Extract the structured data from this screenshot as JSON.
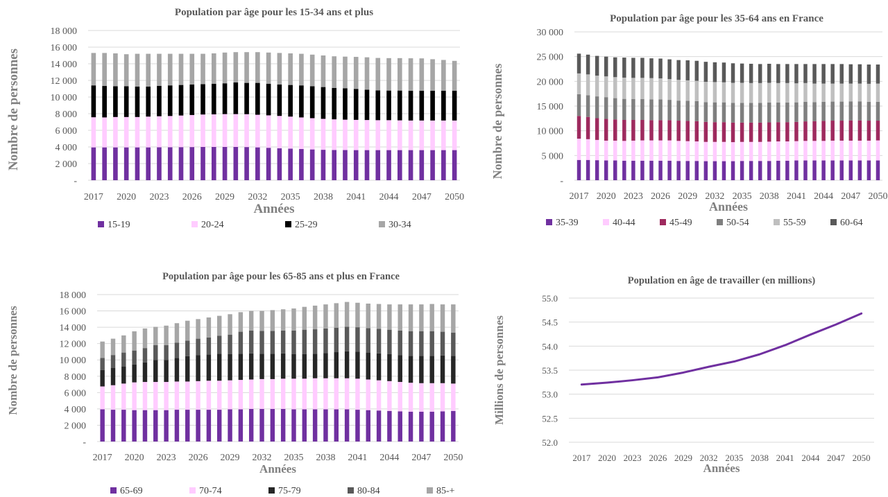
{
  "charts": [
    {
      "type": "bar",
      "stacked": true,
      "title": "Population par âge pour les 15-34 ans et plus",
      "xlabel": "Années",
      "ylabel": "Nombre de personnes",
      "ylim": [
        0,
        18000
      ],
      "ytick_labels": [
        "-",
        "2 000",
        "4 000",
        "6 000",
        "8 000",
        "10 000",
        "12 000",
        "14 000",
        "16 000",
        "18 000"
      ],
      "xtick_labels": [
        "2017",
        "2020",
        "2023",
        "2026",
        "2029",
        "2032",
        "2035",
        "2038",
        "2041",
        "2044",
        "2047",
        "2050"
      ],
      "grid": true,
      "legend_position": "bottom",
      "categories": [
        "2017",
        "2018",
        "2019",
        "2020",
        "2021",
        "2022",
        "2023",
        "2024",
        "2025",
        "2026",
        "2027",
        "2028",
        "2029",
        "2030",
        "2031",
        "2032",
        "2033",
        "2034",
        "2035",
        "2036",
        "2037",
        "2038",
        "2039",
        "2040",
        "2041",
        "2042",
        "2043",
        "2044",
        "2045",
        "2046",
        "2047",
        "2048",
        "2049",
        "2050"
      ],
      "series": [
        {
          "name": "15-19",
          "color": "#7030a0",
          "values": [
            3950,
            3950,
            3950,
            3950,
            3950,
            3950,
            3960,
            3970,
            3980,
            3990,
            4000,
            4000,
            4000,
            4000,
            3990,
            3950,
            3900,
            3850,
            3800,
            3750,
            3700,
            3660,
            3640,
            3630,
            3620,
            3620,
            3620,
            3620,
            3620,
            3620,
            3620,
            3620,
            3620,
            3620
          ]
        },
        {
          "name": "20-24",
          "color": "#ffccff",
          "values": [
            3620,
            3600,
            3650,
            3650,
            3650,
            3700,
            3730,
            3750,
            3800,
            3850,
            3900,
            3920,
            3950,
            3950,
            3950,
            3920,
            3900,
            3880,
            3850,
            3800,
            3760,
            3720,
            3680,
            3650,
            3640,
            3620,
            3600,
            3600,
            3580,
            3560,
            3560,
            3560,
            3560,
            3560
          ]
        },
        {
          "name": "25-29",
          "color": "#000000",
          "values": [
            3830,
            3780,
            3700,
            3700,
            3650,
            3600,
            3660,
            3680,
            3670,
            3660,
            3650,
            3680,
            3700,
            3800,
            3760,
            3830,
            3800,
            3770,
            3800,
            3850,
            3840,
            3820,
            3780,
            3780,
            3720,
            3640,
            3580,
            3560,
            3580,
            3580,
            3570,
            3570,
            3580,
            3570
          ]
        },
        {
          "name": "30-34",
          "color": "#a6a6a6",
          "values": [
            3900,
            3970,
            3950,
            3850,
            3950,
            3950,
            3850,
            3800,
            3750,
            3700,
            3650,
            3650,
            3700,
            3650,
            3700,
            3700,
            3750,
            3800,
            3800,
            3800,
            3800,
            3800,
            3800,
            3800,
            3850,
            3900,
            3900,
            3900,
            3900,
            3900,
            3900,
            3800,
            3700,
            3600
          ]
        }
      ]
    },
    {
      "type": "bar",
      "stacked": true,
      "title": "Population par âge pour les 35-64 ans en France",
      "xlabel": "Années",
      "ylabel": "Nombre de personnes",
      "ylim": [
        0,
        30000
      ],
      "ytick_labels": [
        "-",
        "5 000",
        "10 000",
        "15 000",
        "20 000",
        "25 000",
        "30 000"
      ],
      "xtick_labels": [
        "2017",
        "2020",
        "2023",
        "2026",
        "2029",
        "2032",
        "2035",
        "2038",
        "2041",
        "2044",
        "2047",
        "2050"
      ],
      "grid": true,
      "legend_position": "bottom",
      "categories": [
        "2017",
        "2018",
        "2019",
        "2020",
        "2021",
        "2022",
        "2023",
        "2024",
        "2025",
        "2026",
        "2027",
        "2028",
        "2029",
        "2030",
        "2031",
        "2032",
        "2033",
        "2034",
        "2035",
        "2036",
        "2037",
        "2038",
        "2039",
        "2040",
        "2041",
        "2042",
        "2043",
        "2044",
        "2045",
        "2046",
        "2047",
        "2048",
        "2049",
        "2050"
      ],
      "series": [
        {
          "name": "35-39",
          "color": "#7030a0",
          "values": [
            4100,
            4100,
            4050,
            4000,
            4000,
            3950,
            3950,
            3950,
            3950,
            3950,
            3950,
            3900,
            3900,
            3900,
            3850,
            3850,
            3850,
            3850,
            3900,
            3900,
            3900,
            3900,
            3950,
            3950,
            4000,
            4000,
            4000,
            4000,
            4000,
            4000,
            4000,
            4000,
            4000,
            4000
          ]
        },
        {
          "name": "40-44",
          "color": "#ffccff",
          "values": [
            4300,
            4200,
            4100,
            4000,
            4000,
            4000,
            4050,
            4100,
            4100,
            4100,
            4100,
            4050,
            4000,
            3950,
            3900,
            3900,
            3900,
            3850,
            3850,
            3850,
            3850,
            3900,
            3900,
            3900,
            3900,
            3950,
            3950,
            3950,
            4000,
            4000,
            4000,
            4000,
            4000,
            4050
          ]
        },
        {
          "name": "45-49",
          "color": "#9e2a5e",
          "values": [
            4600,
            4500,
            4400,
            4400,
            4300,
            4250,
            4200,
            4150,
            4100,
            4100,
            4100,
            4100,
            4100,
            4100,
            4050,
            4000,
            4000,
            3950,
            3900,
            3900,
            3900,
            3900,
            3900,
            3900,
            3900,
            3950,
            4000,
            4050,
            4050,
            4050,
            4100,
            4100,
            4050,
            4000
          ]
        },
        {
          "name": "50-54",
          "color": "#7f7f7f",
          "values": [
            4400,
            4400,
            4400,
            4400,
            4300,
            4250,
            4200,
            4200,
            4200,
            4200,
            4100,
            4050,
            4050,
            4050,
            4000,
            4000,
            4000,
            4000,
            4000,
            4000,
            4000,
            4000,
            3950,
            3950,
            3950,
            3950,
            3850,
            3850,
            3850,
            3850,
            3850,
            3850,
            3800,
            3800
          ]
        },
        {
          "name": "55-59",
          "color": "#bfbfbf",
          "values": [
            4200,
            4200,
            4200,
            4200,
            4250,
            4300,
            4300,
            4300,
            4300,
            4250,
            4200,
            4200,
            4150,
            4100,
            4100,
            4100,
            4050,
            4050,
            4050,
            4000,
            4000,
            4000,
            3950,
            3950,
            3850,
            3800,
            3750,
            3700,
            3650,
            3650,
            3600,
            3600,
            3650,
            3700
          ]
        },
        {
          "name": "60-64",
          "color": "#595959",
          "values": [
            4000,
            4000,
            4000,
            4000,
            4000,
            4050,
            4050,
            4050,
            4000,
            4000,
            4000,
            4000,
            4050,
            4050,
            4050,
            4000,
            4000,
            3950,
            3900,
            3900,
            3850,
            3850,
            3850,
            3850,
            3900,
            3850,
            3950,
            3950,
            3950,
            3950,
            3900,
            3900,
            3900,
            3850
          ]
        }
      ]
    },
    {
      "type": "bar",
      "stacked": true,
      "title": "Population par âge pour les 65-85 ans et plus en France",
      "xlabel": "Années",
      "ylabel": "Nombre de personnes",
      "ylim": [
        0,
        18000
      ],
      "ytick_labels": [
        "-",
        "2 000",
        "4 000",
        "6 000",
        "8 000",
        "10 000",
        "12 000",
        "14 000",
        "16 000",
        "18 000"
      ],
      "xtick_labels": [
        "2017",
        "2020",
        "2023",
        "2026",
        "2029",
        "2032",
        "2035",
        "2038",
        "2041",
        "2044",
        "2047",
        "2050"
      ],
      "grid": true,
      "legend_position": "bottom",
      "categories": [
        "2017",
        "2018",
        "2019",
        "2020",
        "2021",
        "2022",
        "2023",
        "2024",
        "2025",
        "2026",
        "2027",
        "2028",
        "2029",
        "2030",
        "2031",
        "2032",
        "2033",
        "2034",
        "2035",
        "2036",
        "2037",
        "2038",
        "2039",
        "2040",
        "2041",
        "2042",
        "2043",
        "2044",
        "2045",
        "2046",
        "2047",
        "2048",
        "2049",
        "2050"
      ],
      "series": [
        {
          "name": "65-69",
          "color": "#7030a0",
          "values": [
            3950,
            3900,
            3900,
            3850,
            3850,
            3850,
            3850,
            3900,
            3900,
            3900,
            3900,
            3900,
            3950,
            3950,
            4000,
            4000,
            4000,
            4000,
            3950,
            3950,
            3950,
            3950,
            3950,
            3950,
            3900,
            3850,
            3800,
            3750,
            3700,
            3650,
            3650,
            3650,
            3700,
            3750
          ]
        },
        {
          "name": "70-74",
          "color": "#ffccff",
          "values": [
            2800,
            3000,
            3200,
            3400,
            3450,
            3450,
            3450,
            3450,
            3450,
            3500,
            3550,
            3550,
            3550,
            3600,
            3600,
            3650,
            3650,
            3700,
            3750,
            3750,
            3800,
            3800,
            3800,
            3800,
            3800,
            3750,
            3700,
            3650,
            3600,
            3550,
            3500,
            3500,
            3450,
            3350
          ]
        },
        {
          "name": "75-79",
          "color": "#262626",
          "values": [
            2000,
            2100,
            2100,
            2200,
            2400,
            2700,
            2700,
            2900,
            3100,
            3200,
            3200,
            3300,
            3200,
            3200,
            3200,
            3100,
            3100,
            3100,
            3000,
            3000,
            3000,
            3100,
            3200,
            3300,
            3300,
            3300,
            3300,
            3300,
            3300,
            3300,
            3350,
            3350,
            3400,
            3400
          ]
        },
        {
          "name": "80-84",
          "color": "#595959",
          "values": [
            1500,
            1600,
            1700,
            1700,
            1750,
            1800,
            1800,
            1850,
            1900,
            2000,
            2100,
            2200,
            2400,
            2700,
            2800,
            2800,
            2800,
            2800,
            2900,
            3000,
            3000,
            3000,
            3000,
            3000,
            3000,
            3000,
            3000,
            3000,
            3000,
            3000,
            3000,
            3000,
            2900,
            2850
          ]
        },
        {
          "name": "85-+",
          "color": "#a6a6a6",
          "values": [
            2000,
            2000,
            2100,
            2350,
            2400,
            2250,
            2400,
            2400,
            2450,
            2400,
            2450,
            2450,
            2500,
            2400,
            2400,
            2450,
            2550,
            2600,
            2700,
            2800,
            2900,
            2950,
            3000,
            3050,
            3000,
            3000,
            3050,
            3100,
            3200,
            3300,
            3300,
            3350,
            3350,
            3450
          ]
        }
      ]
    },
    {
      "type": "line",
      "title": "Population en âge de travailler (en millions)",
      "xlabel": "Années",
      "ylabel": "Millions de personnes",
      "ylim": [
        52,
        55
      ],
      "ytick_labels": [
        "52.0",
        "52.5",
        "53.0",
        "53.5",
        "54.0",
        "54.5",
        "55.0"
      ],
      "xtick_labels": [
        "2017",
        "2020",
        "2023",
        "2026",
        "2029",
        "2032",
        "2035",
        "2038",
        "2041",
        "2044",
        "2047",
        "2050"
      ],
      "grid": true,
      "x": [
        2017,
        2020,
        2023,
        2026,
        2029,
        2032,
        2035,
        2038,
        2041,
        2044,
        2047,
        2050
      ],
      "series": [
        {
          "color": "#7030a0",
          "values": [
            53.2,
            53.24,
            53.29,
            53.35,
            53.45,
            53.57,
            53.68,
            53.83,
            54.02,
            54.24,
            54.45,
            54.68
          ]
        }
      ]
    }
  ]
}
